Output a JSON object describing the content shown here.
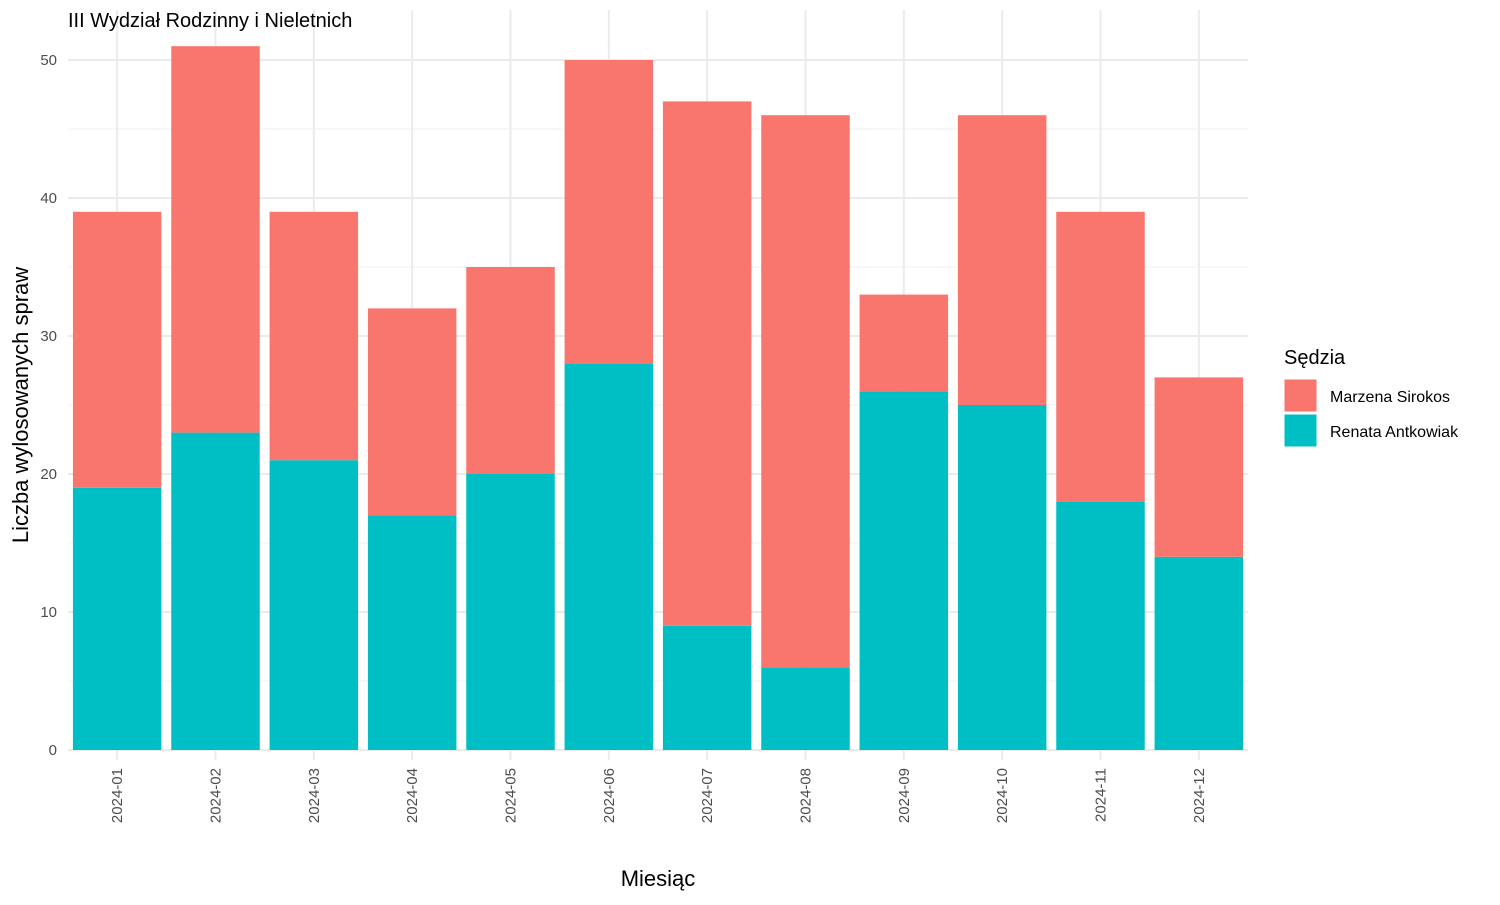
{
  "chart_data": {
    "type": "bar",
    "stacked": true,
    "title": "III Wydział Rodzinny i Nieletnich",
    "xlabel": "Miesiąc",
    "ylabel": "Liczba wylosowanych spraw",
    "ylim": [
      0,
      52
    ],
    "yticks": [
      0,
      10,
      20,
      30,
      40,
      50
    ],
    "grid": true,
    "legend": {
      "title": "Sędzia",
      "position": "right"
    },
    "categories": [
      "2024-01",
      "2024-02",
      "2024-03",
      "2024-04",
      "2024-05",
      "2024-06",
      "2024-07",
      "2024-08",
      "2024-09",
      "2024-10",
      "2024-11",
      "2024-12"
    ],
    "series": [
      {
        "name": "Renata Antkowiak",
        "color": "#00BFC4",
        "values": [
          19,
          23,
          21,
          17,
          20,
          28,
          9,
          6,
          26,
          25,
          18,
          14
        ]
      },
      {
        "name": "Marzena Sirokos",
        "color": "#F8766D",
        "values": [
          20,
          28,
          18,
          15,
          15,
          22,
          38,
          40,
          7,
          21,
          21,
          13
        ]
      }
    ],
    "legend_order": [
      "Marzena Sirokos",
      "Renata Antkowiak"
    ]
  }
}
